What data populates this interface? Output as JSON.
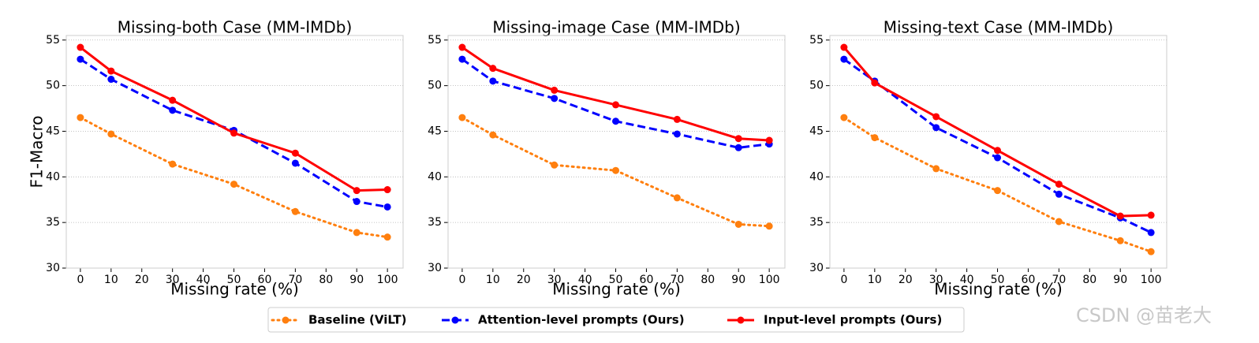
{
  "chart_data": [
    {
      "type": "line",
      "title": "Missing-both Case (MM-IMDb)",
      "x_label": "Missing rate (%)",
      "y_label": "F1-Macro",
      "x": [
        0,
        10,
        30,
        50,
        70,
        90,
        100
      ],
      "xlim": [
        -4.6,
        105.1
      ],
      "ylim": [
        30,
        55.5
      ],
      "xticks": [
        0,
        10,
        20,
        30,
        40,
        50,
        60,
        70,
        80,
        90,
        100
      ],
      "yticks": [
        30,
        35,
        40,
        45,
        50,
        55
      ],
      "grid": true,
      "series": [
        {
          "name": "Baseline (ViLT)",
          "color": "#ff7f0e",
          "linestyle": "dotted",
          "values": [
            46.5,
            44.7,
            41.4,
            39.2,
            36.2,
            33.9,
            33.4
          ]
        },
        {
          "name": "Attention-level prompts (Ours)",
          "color": "#0000ff",
          "linestyle": "dashed",
          "values": [
            52.9,
            50.7,
            47.3,
            45.1,
            41.5,
            37.3,
            36.7
          ]
        },
        {
          "name": "Input-level prompts (Ours)",
          "color": "#ff0000",
          "linestyle": "solid",
          "values": [
            54.2,
            51.6,
            48.4,
            44.8,
            42.6,
            38.5,
            38.6
          ]
        }
      ]
    },
    {
      "type": "line",
      "title": "Missing-image Case (MM-IMDb)",
      "x_label": "Missing rate (%)",
      "x": [
        0,
        10,
        30,
        50,
        70,
        90,
        100
      ],
      "xlim": [
        -4.6,
        105.1
      ],
      "ylim": [
        30,
        55.5
      ],
      "xticks": [
        0,
        10,
        20,
        30,
        40,
        50,
        60,
        70,
        80,
        90,
        100
      ],
      "yticks": [
        30,
        35,
        40,
        45,
        50,
        55
      ],
      "grid": true,
      "series": [
        {
          "name": "Baseline (ViLT)",
          "color": "#ff7f0e",
          "linestyle": "dotted",
          "values": [
            46.5,
            44.6,
            41.3,
            40.7,
            37.7,
            34.8,
            34.6
          ]
        },
        {
          "name": "Attention-level prompts (Ours)",
          "color": "#0000ff",
          "linestyle": "dashed",
          "values": [
            52.9,
            50.5,
            48.6,
            46.1,
            44.7,
            43.2,
            43.6
          ]
        },
        {
          "name": "Input-level prompts (Ours)",
          "color": "#ff0000",
          "linestyle": "solid",
          "values": [
            54.2,
            51.9,
            49.5,
            47.9,
            46.3,
            44.2,
            44.0
          ]
        }
      ]
    },
    {
      "type": "line",
      "title": "Missing-text Case (MM-IMDb)",
      "x_label": "Missing rate (%)",
      "x": [
        0,
        10,
        30,
        50,
        70,
        90,
        100
      ],
      "xlim": [
        -4.6,
        105.1
      ],
      "ylim": [
        30,
        55.5
      ],
      "xticks": [
        0,
        10,
        20,
        30,
        40,
        50,
        60,
        70,
        80,
        90,
        100
      ],
      "yticks": [
        30,
        35,
        40,
        45,
        50,
        55
      ],
      "grid": true,
      "series": [
        {
          "name": "Baseline (ViLT)",
          "color": "#ff7f0e",
          "linestyle": "dotted",
          "values": [
            46.5,
            44.3,
            40.9,
            38.5,
            35.1,
            33.0,
            31.8
          ]
        },
        {
          "name": "Attention-level prompts (Ours)",
          "color": "#0000ff",
          "linestyle": "dashed",
          "values": [
            52.9,
            50.5,
            45.4,
            42.1,
            38.1,
            35.5,
            33.9
          ]
        },
        {
          "name": "Input-level prompts (Ours)",
          "color": "#ff0000",
          "linestyle": "solid",
          "values": [
            54.2,
            50.3,
            46.6,
            42.9,
            39.2,
            35.7,
            35.8
          ]
        }
      ]
    }
  ],
  "watermark": "CSDN @苗老大"
}
